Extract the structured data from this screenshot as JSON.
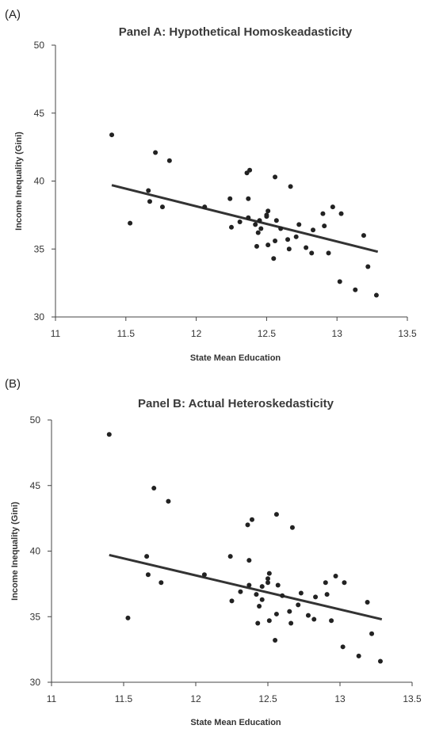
{
  "chart_data": [
    {
      "panel_tag": "(A)",
      "type": "scatter",
      "title": "Panel A: Hypothetical Homoskeadasticity",
      "xlabel": "State Mean Education",
      "ylabel": "Income Inequality (Gini)",
      "xlim": [
        11,
        13.5
      ],
      "ylim": [
        30,
        50
      ],
      "xticks": [
        "11",
        "11.5",
        "12",
        "12.5",
        "13",
        "13.5"
      ],
      "yticks": [
        "30",
        "35",
        "40",
        "45",
        "50"
      ],
      "grid": false,
      "trendline": {
        "x": [
          11.4,
          13.29
        ],
        "y": [
          39.7,
          34.8
        ]
      },
      "points": [
        {
          "x": 11.4,
          "y": 43.4
        },
        {
          "x": 11.53,
          "y": 36.9
        },
        {
          "x": 11.66,
          "y": 39.3
        },
        {
          "x": 11.67,
          "y": 38.5
        },
        {
          "x": 11.71,
          "y": 42.1
        },
        {
          "x": 11.76,
          "y": 38.1
        },
        {
          "x": 11.81,
          "y": 41.5
        },
        {
          "x": 12.06,
          "y": 38.1
        },
        {
          "x": 12.24,
          "y": 38.7
        },
        {
          "x": 12.25,
          "y": 36.6
        },
        {
          "x": 12.31,
          "y": 37.0
        },
        {
          "x": 12.36,
          "y": 40.6
        },
        {
          "x": 12.37,
          "y": 38.7
        },
        {
          "x": 12.37,
          "y": 37.3
        },
        {
          "x": 12.38,
          "y": 40.8
        },
        {
          "x": 12.42,
          "y": 36.8
        },
        {
          "x": 12.43,
          "y": 35.2
        },
        {
          "x": 12.44,
          "y": 36.2
        },
        {
          "x": 12.45,
          "y": 37.1
        },
        {
          "x": 12.46,
          "y": 36.5
        },
        {
          "x": 12.5,
          "y": 37.4
        },
        {
          "x": 12.5,
          "y": 37.5
        },
        {
          "x": 12.51,
          "y": 35.3
        },
        {
          "x": 12.51,
          "y": 37.8
        },
        {
          "x": 12.55,
          "y": 34.3
        },
        {
          "x": 12.56,
          "y": 35.6
        },
        {
          "x": 12.56,
          "y": 40.3
        },
        {
          "x": 12.57,
          "y": 37.1
        },
        {
          "x": 12.6,
          "y": 36.5
        },
        {
          "x": 12.65,
          "y": 35.7
        },
        {
          "x": 12.66,
          "y": 35.0
        },
        {
          "x": 12.67,
          "y": 39.6
        },
        {
          "x": 12.71,
          "y": 35.9
        },
        {
          "x": 12.73,
          "y": 36.8
        },
        {
          "x": 12.78,
          "y": 35.1
        },
        {
          "x": 12.82,
          "y": 34.7
        },
        {
          "x": 12.83,
          "y": 36.4
        },
        {
          "x": 12.9,
          "y": 37.6
        },
        {
          "x": 12.91,
          "y": 36.7
        },
        {
          "x": 12.94,
          "y": 34.7
        },
        {
          "x": 12.97,
          "y": 38.1
        },
        {
          "x": 13.02,
          "y": 32.6
        },
        {
          "x": 13.03,
          "y": 37.6
        },
        {
          "x": 13.13,
          "y": 32.0
        },
        {
          "x": 13.19,
          "y": 36.0
        },
        {
          "x": 13.22,
          "y": 33.7
        },
        {
          "x": 13.28,
          "y": 31.6
        }
      ]
    },
    {
      "panel_tag": "(B)",
      "type": "scatter",
      "title": "Panel B: Actual Heteroskedasticity",
      "xlabel": "State Mean Education",
      "ylabel": "Income Inequality (Gini)",
      "xlim": [
        11,
        13.5
      ],
      "ylim": [
        30,
        50
      ],
      "xticks": [
        "11",
        "11.5",
        "12",
        "12.5",
        "13",
        "13.5"
      ],
      "yticks": [
        "30",
        "35",
        "40",
        "45",
        "50"
      ],
      "grid": false,
      "trendline": {
        "x": [
          11.4,
          13.29
        ],
        "y": [
          39.7,
          34.8
        ]
      },
      "points": [
        {
          "x": 11.4,
          "y": 48.9
        },
        {
          "x": 11.53,
          "y": 34.9
        },
        {
          "x": 11.66,
          "y": 39.6
        },
        {
          "x": 11.67,
          "y": 38.2
        },
        {
          "x": 11.71,
          "y": 44.8
        },
        {
          "x": 11.76,
          "y": 37.6
        },
        {
          "x": 11.81,
          "y": 43.8
        },
        {
          "x": 12.06,
          "y": 38.2
        },
        {
          "x": 12.24,
          "y": 39.6
        },
        {
          "x": 12.25,
          "y": 36.2
        },
        {
          "x": 12.31,
          "y": 36.9
        },
        {
          "x": 12.36,
          "y": 42.0
        },
        {
          "x": 12.37,
          "y": 39.3
        },
        {
          "x": 12.37,
          "y": 37.4
        },
        {
          "x": 12.39,
          "y": 42.4
        },
        {
          "x": 12.42,
          "y": 36.7
        },
        {
          "x": 12.43,
          "y": 34.5
        },
        {
          "x": 12.44,
          "y": 35.8
        },
        {
          "x": 12.46,
          "y": 37.3
        },
        {
          "x": 12.46,
          "y": 36.3
        },
        {
          "x": 12.5,
          "y": 37.6
        },
        {
          "x": 12.5,
          "y": 37.9
        },
        {
          "x": 12.51,
          "y": 34.7
        },
        {
          "x": 12.51,
          "y": 38.3
        },
        {
          "x": 12.55,
          "y": 33.2
        },
        {
          "x": 12.56,
          "y": 35.2
        },
        {
          "x": 12.56,
          "y": 42.8
        },
        {
          "x": 12.57,
          "y": 37.4
        },
        {
          "x": 12.6,
          "y": 36.6
        },
        {
          "x": 12.65,
          "y": 35.4
        },
        {
          "x": 12.66,
          "y": 34.5
        },
        {
          "x": 12.67,
          "y": 41.8
        },
        {
          "x": 12.71,
          "y": 35.9
        },
        {
          "x": 12.73,
          "y": 36.8
        },
        {
          "x": 12.78,
          "y": 35.1
        },
        {
          "x": 12.82,
          "y": 34.8
        },
        {
          "x": 12.83,
          "y": 36.5
        },
        {
          "x": 12.9,
          "y": 37.6
        },
        {
          "x": 12.91,
          "y": 36.7
        },
        {
          "x": 12.94,
          "y": 34.7
        },
        {
          "x": 12.97,
          "y": 38.1
        },
        {
          "x": 13.02,
          "y": 32.7
        },
        {
          "x": 13.03,
          "y": 37.6
        },
        {
          "x": 13.13,
          "y": 32.0
        },
        {
          "x": 13.19,
          "y": 36.1
        },
        {
          "x": 13.22,
          "y": 33.7
        },
        {
          "x": 13.28,
          "y": 31.6
        }
      ]
    }
  ]
}
